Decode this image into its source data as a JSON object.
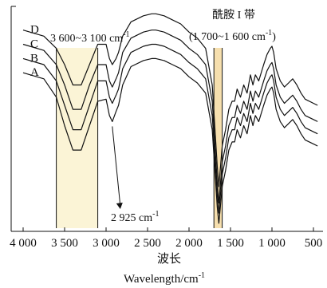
{
  "chart_data": {
    "type": "line",
    "title": "",
    "xlabel_cn": "波长",
    "xlabel_en": "Wavelength/cm",
    "xlabel_en_sup": "-1",
    "ylabel": "",
    "xlim": [
      4000,
      400
    ],
    "x_reversed": true,
    "y_ticks_shown": false,
    "grid": false,
    "x_ticks": [
      "4 000",
      "3 500",
      "3 000",
      "2 500",
      "2 000",
      "1 500",
      "1 000",
      "500"
    ],
    "x_tick_values": [
      4000,
      3500,
      3000,
      2500,
      2000,
      1500,
      1000,
      500
    ],
    "bands": [
      {
        "name": "oh-band",
        "label": "3 600~3 100 cm",
        "sup": "-1",
        "from": 3600,
        "to": 3100,
        "color": "#fbf4d6"
      },
      {
        "name": "amide-band",
        "label_cn": "酰胺 I 带",
        "label": "(1 700~1 600 cm",
        "sup": "-1",
        "label_close": ")",
        "from": 1700,
        "to": 1600,
        "color": "#f6dfae"
      }
    ],
    "annotation": {
      "label": "2 925 cm",
      "sup": "-1",
      "x": 2925
    },
    "series": [
      {
        "name": "D",
        "x": [
          4000,
          3750,
          3600,
          3500,
          3400,
          3300,
          3200,
          3100,
          3000,
          2960,
          2925,
          2880,
          2850,
          2800,
          2700,
          2550,
          2450,
          2400,
          2300,
          2200,
          2100,
          2000,
          1900,
          1800,
          1720,
          1660,
          1640,
          1600,
          1560,
          1520,
          1480,
          1450,
          1420,
          1380,
          1340,
          1300,
          1260,
          1230,
          1200,
          1160,
          1100,
          1060,
          1020,
          1000,
          980,
          950,
          900,
          850,
          800,
          750,
          700,
          650,
          600,
          500,
          450
        ],
        "y": [
          0.97,
          0.94,
          0.88,
          0.8,
          0.7,
          0.7,
          0.8,
          0.9,
          0.9,
          0.83,
          0.8,
          0.83,
          0.86,
          0.94,
          1.01,
          1.04,
          1.05,
          1.05,
          1.04,
          1.02,
          1.0,
          0.96,
          0.93,
          0.88,
          0.7,
          0.3,
          0.2,
          0.4,
          0.48,
          0.58,
          0.62,
          0.62,
          0.68,
          0.64,
          0.7,
          0.66,
          0.75,
          0.7,
          0.75,
          0.72,
          0.8,
          0.85,
          0.88,
          0.89,
          0.86,
          0.78,
          0.72,
          0.69,
          0.71,
          0.73,
          0.7,
          0.66,
          0.63,
          0.61,
          0.6
        ]
      },
      {
        "name": "C",
        "x": [
          4000,
          3750,
          3600,
          3500,
          3400,
          3300,
          3200,
          3100,
          3000,
          2960,
          2925,
          2880,
          2850,
          2800,
          2700,
          2550,
          2450,
          2400,
          2300,
          2200,
          2100,
          2000,
          1900,
          1800,
          1720,
          1660,
          1640,
          1600,
          1560,
          1520,
          1480,
          1450,
          1420,
          1380,
          1340,
          1300,
          1260,
          1230,
          1200,
          1160,
          1100,
          1060,
          1020,
          1000,
          980,
          950,
          900,
          850,
          800,
          750,
          700,
          650,
          600,
          500,
          450
        ],
        "y": [
          0.9,
          0.87,
          0.8,
          0.7,
          0.58,
          0.58,
          0.7,
          0.8,
          0.8,
          0.72,
          0.69,
          0.73,
          0.76,
          0.86,
          0.93,
          0.96,
          0.97,
          0.97,
          0.96,
          0.94,
          0.92,
          0.88,
          0.85,
          0.8,
          0.62,
          0.22,
          0.12,
          0.32,
          0.4,
          0.5,
          0.54,
          0.54,
          0.6,
          0.56,
          0.62,
          0.58,
          0.67,
          0.62,
          0.67,
          0.64,
          0.72,
          0.77,
          0.8,
          0.81,
          0.78,
          0.7,
          0.64,
          0.61,
          0.63,
          0.65,
          0.62,
          0.58,
          0.55,
          0.53,
          0.52
        ]
      },
      {
        "name": "B",
        "x": [
          4000,
          3750,
          3600,
          3500,
          3400,
          3300,
          3200,
          3100,
          3000,
          2960,
          2925,
          2880,
          2850,
          2800,
          2700,
          2550,
          2450,
          2400,
          2300,
          2200,
          2100,
          2000,
          1900,
          1800,
          1720,
          1660,
          1640,
          1600,
          1560,
          1520,
          1480,
          1450,
          1420,
          1380,
          1340,
          1300,
          1260,
          1230,
          1200,
          1160,
          1100,
          1060,
          1020,
          1000,
          980,
          950,
          900,
          850,
          800,
          750,
          700,
          650,
          600,
          500,
          450
        ],
        "y": [
          0.83,
          0.8,
          0.72,
          0.6,
          0.48,
          0.48,
          0.6,
          0.72,
          0.72,
          0.64,
          0.61,
          0.65,
          0.68,
          0.78,
          0.86,
          0.89,
          0.9,
          0.9,
          0.89,
          0.87,
          0.85,
          0.81,
          0.78,
          0.73,
          0.55,
          0.16,
          0.07,
          0.26,
          0.34,
          0.44,
          0.48,
          0.48,
          0.54,
          0.5,
          0.56,
          0.52,
          0.61,
          0.56,
          0.61,
          0.58,
          0.66,
          0.71,
          0.74,
          0.75,
          0.72,
          0.64,
          0.58,
          0.55,
          0.57,
          0.59,
          0.56,
          0.52,
          0.49,
          0.47,
          0.46
        ]
      },
      {
        "name": "A",
        "x": [
          4000,
          3750,
          3600,
          3500,
          3400,
          3300,
          3200,
          3100,
          3000,
          2960,
          2925,
          2880,
          2850,
          2800,
          2700,
          2550,
          2450,
          2400,
          2300,
          2200,
          2100,
          2000,
          1900,
          1800,
          1720,
          1660,
          1640,
          1600,
          1560,
          1520,
          1480,
          1450,
          1420,
          1380,
          1340,
          1300,
          1260,
          1230,
          1200,
          1160,
          1100,
          1060,
          1020,
          1000,
          980,
          950,
          900,
          850,
          800,
          750,
          700,
          650,
          600,
          500,
          450
        ],
        "y": [
          0.76,
          0.73,
          0.64,
          0.5,
          0.38,
          0.38,
          0.5,
          0.62,
          0.63,
          0.55,
          0.52,
          0.57,
          0.6,
          0.7,
          0.79,
          0.82,
          0.83,
          0.83,
          0.82,
          0.8,
          0.78,
          0.74,
          0.71,
          0.66,
          0.48,
          0.1,
          0.02,
          0.2,
          0.28,
          0.38,
          0.42,
          0.42,
          0.48,
          0.44,
          0.5,
          0.46,
          0.55,
          0.5,
          0.55,
          0.52,
          0.6,
          0.65,
          0.68,
          0.69,
          0.66,
          0.58,
          0.52,
          0.49,
          0.51,
          0.53,
          0.5,
          0.46,
          0.43,
          0.41,
          0.4
        ]
      }
    ]
  }
}
